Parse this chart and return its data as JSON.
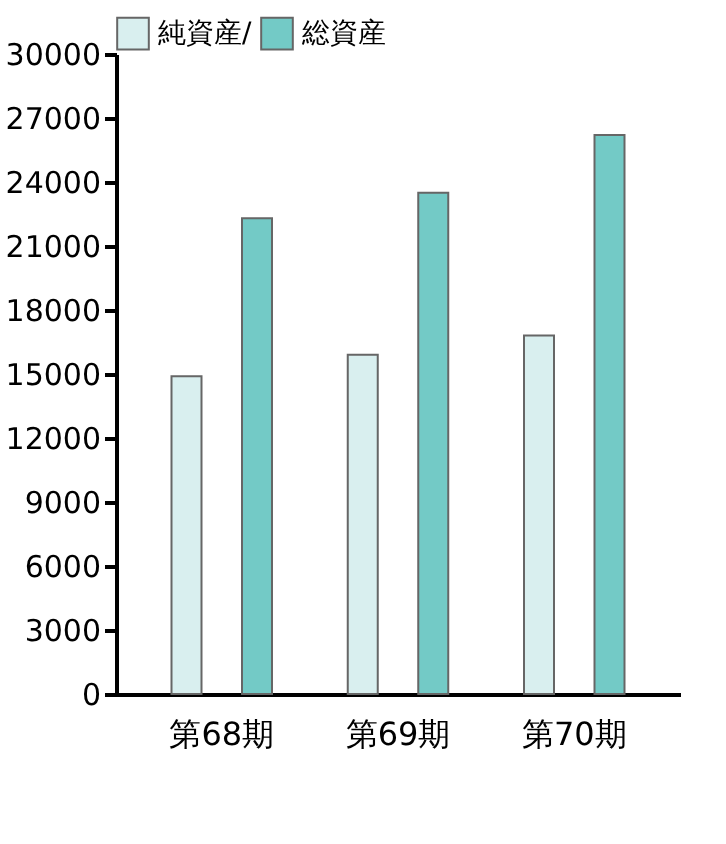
{
  "chart_data": {
    "type": "bar",
    "categories": [
      "第68期",
      "第69期",
      "第70期"
    ],
    "series": [
      {
        "name": "純資産/",
        "color": "#d9efef",
        "values": [
          14900,
          15900,
          16800
        ]
      },
      {
        "name": "総資産",
        "color": "#73cac6",
        "values": [
          22300,
          23500,
          26200
        ]
      }
    ],
    "ylim": [
      0,
      30000
    ],
    "yticks": [
      0,
      3000,
      6000,
      9000,
      12000,
      15000,
      18000,
      21000,
      24000,
      27000,
      30000
    ],
    "grid": false,
    "legend": "top"
  }
}
